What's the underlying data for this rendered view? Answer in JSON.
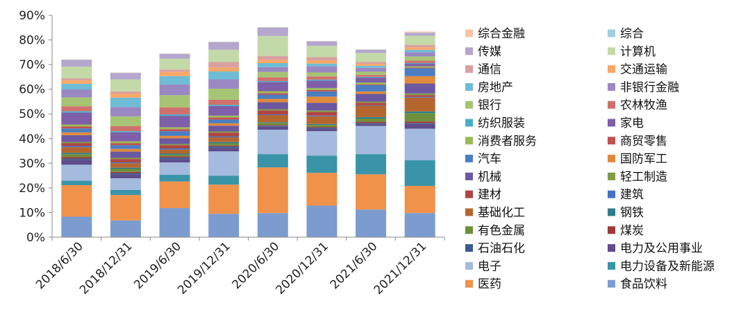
{
  "chart_data": {
    "type": "bar",
    "stacked": true,
    "y_format": "percent",
    "ylim": [
      0,
      90
    ],
    "y_ticks": [
      0,
      10,
      20,
      30,
      40,
      50,
      60,
      70,
      80,
      90
    ],
    "grid": false,
    "legend_position": "right",
    "legend_columns": 2,
    "categories": [
      "2018/6/30",
      "2018/12/31",
      "2019/6/30",
      "2019/12/31",
      "2020/6/30",
      "2020/12/31",
      "2021/6/30",
      "2021/12/31"
    ],
    "series": [
      {
        "name": "食品饮料",
        "color": "#7c9ccf",
        "values": [
          8.3,
          6.8,
          11.8,
          9.5,
          9.8,
          12.8,
          11.2,
          9.8
        ]
      },
      {
        "name": "医药",
        "color": "#f0924a",
        "values": [
          12.8,
          10.3,
          10.8,
          11.8,
          18.5,
          13.3,
          14.3,
          11.0
        ]
      },
      {
        "name": "电力设备及新能源",
        "color": "#3a94a8",
        "values": [
          1.8,
          2.1,
          2.7,
          3.6,
          5.4,
          7.0,
          8.2,
          10.4
        ]
      },
      {
        "name": "电子",
        "color": "#a4bade",
        "values": [
          6.5,
          4.7,
          5.0,
          9.9,
          9.9,
          9.9,
          11.4,
          12.8
        ]
      },
      {
        "name": "电力及公用事业",
        "color": "#5e4c8b",
        "values": [
          1.9,
          1.5,
          1.4,
          1.4,
          1.2,
          1.0,
          0.8,
          1.9
        ]
      },
      {
        "name": "石油石化",
        "color": "#3c5a8f",
        "values": [
          0.6,
          0.6,
          0.6,
          0.6,
          0.4,
          0.4,
          0.4,
          0.4
        ]
      },
      {
        "name": "煤炭",
        "color": "#9e3b38",
        "values": [
          0.6,
          0.5,
          0.5,
          0.4,
          0.3,
          0.3,
          0.5,
          0.6
        ]
      },
      {
        "name": "有色金属",
        "color": "#6e8f3c",
        "values": [
          1.2,
          1.2,
          0.6,
          0.9,
          0.8,
          0.8,
          1.3,
          3.4
        ]
      },
      {
        "name": "钢铁",
        "color": "#2f7d8a",
        "values": [
          0.5,
          0.5,
          0.5,
          0.5,
          0.3,
          0.4,
          0.6,
          0.7
        ]
      },
      {
        "name": "基础化工",
        "color": "#b5662f",
        "values": [
          2.3,
          1.8,
          1.6,
          1.9,
          2.9,
          3.1,
          4.6,
          5.6
        ]
      },
      {
        "name": "建筑",
        "color": "#4472c4",
        "values": [
          0.5,
          0.4,
          0.5,
          0.4,
          0.3,
          0.3,
          0.2,
          0.3
        ]
      },
      {
        "name": "建材",
        "color": "#b04440",
        "values": [
          1.1,
          1.3,
          1.3,
          1.5,
          1.6,
          1.5,
          1.0,
          0.7
        ]
      },
      {
        "name": "轻工制造",
        "color": "#7f9a48",
        "values": [
          0.5,
          0.5,
          0.5,
          0.5,
          0.5,
          0.6,
          0.5,
          0.7
        ]
      },
      {
        "name": "机械",
        "color": "#6b58a0",
        "values": [
          2.8,
          2.5,
          2.3,
          2.3,
          2.8,
          3.1,
          3.1,
          4.0
        ]
      },
      {
        "name": "国防军工",
        "color": "#e08a3c",
        "values": [
          1.1,
          1.1,
          1.0,
          1.0,
          1.4,
          2.5,
          1.0,
          3.0
        ]
      },
      {
        "name": "汽车",
        "color": "#4a7ec1",
        "values": [
          1.6,
          1.5,
          1.9,
          1.5,
          1.7,
          2.1,
          2.6,
          3.2
        ]
      },
      {
        "name": "商贸零售",
        "color": "#c0504d",
        "values": [
          0.8,
          0.8,
          0.8,
          0.8,
          0.6,
          0.6,
          0.3,
          0.3
        ]
      },
      {
        "name": "消费者服务",
        "color": "#9bbb59",
        "values": [
          0.8,
          0.8,
          0.8,
          0.8,
          0.8,
          0.8,
          0.7,
          0.5
        ]
      },
      {
        "name": "家电",
        "color": "#7e5fa8",
        "values": [
          4.8,
          3.6,
          4.6,
          3.9,
          3.7,
          3.0,
          2.0,
          1.0
        ]
      },
      {
        "name": "纺织服装",
        "color": "#4aacc6",
        "values": [
          0.6,
          0.5,
          0.6,
          0.5,
          0.4,
          0.4,
          0.3,
          0.3
        ]
      },
      {
        "name": "农林牧渔",
        "color": "#d0706d",
        "values": [
          2.0,
          2.0,
          2.8,
          2.0,
          1.5,
          1.3,
          0.8,
          1.0
        ]
      },
      {
        "name": "银行",
        "color": "#a6c474",
        "values": [
          3.6,
          4.0,
          5.0,
          4.5,
          2.2,
          1.6,
          1.3,
          1.7
        ]
      },
      {
        "name": "非银行金融",
        "color": "#9a88c2",
        "values": [
          3.2,
          3.8,
          4.3,
          3.8,
          2.0,
          2.5,
          1.6,
          1.7
        ]
      },
      {
        "name": "房地产",
        "color": "#6ebcd6",
        "values": [
          2.3,
          3.8,
          3.4,
          3.2,
          1.6,
          1.1,
          0.8,
          1.0
        ]
      },
      {
        "name": "交通运输",
        "color": "#f7a866",
        "values": [
          1.4,
          1.6,
          1.7,
          1.6,
          1.3,
          1.3,
          0.8,
          1.0
        ]
      },
      {
        "name": "通信",
        "color": "#d9a0a0",
        "values": [
          0.8,
          0.9,
          1.0,
          2.3,
          1.6,
          1.3,
          0.8,
          1.0
        ]
      },
      {
        "name": "计算机",
        "color": "#c4d9a8",
        "values": [
          4.8,
          4.9,
          4.4,
          4.9,
          8.1,
          4.6,
          3.6,
          3.7
        ]
      },
      {
        "name": "传媒",
        "color": "#b4a6cd",
        "values": [
          2.7,
          2.6,
          1.9,
          3.1,
          3.4,
          1.8,
          1.3,
          1.2
        ]
      },
      {
        "name": "综合",
        "color": "#9fcfe0",
        "values": [
          0.1,
          0.1,
          0.1,
          0.1,
          0.1,
          0.1,
          0.1,
          0.1
        ]
      },
      {
        "name": "综合金融",
        "color": "#f8c4a4",
        "values": [
          0.1,
          0.1,
          0.1,
          0.1,
          0.1,
          0.1,
          0.1,
          0.4
        ]
      }
    ],
    "legend_order": [
      "综合金融",
      "综合",
      "传媒",
      "计算机",
      "通信",
      "交通运输",
      "房地产",
      "非银行金融",
      "银行",
      "农林牧渔",
      "纺织服装",
      "家电",
      "消费者服务",
      "商贸零售",
      "汽车",
      "国防军工",
      "机械",
      "轻工制造",
      "建材",
      "建筑",
      "基础化工",
      "钢铁",
      "有色金属",
      "煤炭",
      "石油石化",
      "电力及公用事业",
      "电子",
      "电力设备及新能源",
      "医药",
      "食品饮料"
    ],
    "colors": {
      "axis": "#888888",
      "tick_text": "#222222"
    }
  }
}
